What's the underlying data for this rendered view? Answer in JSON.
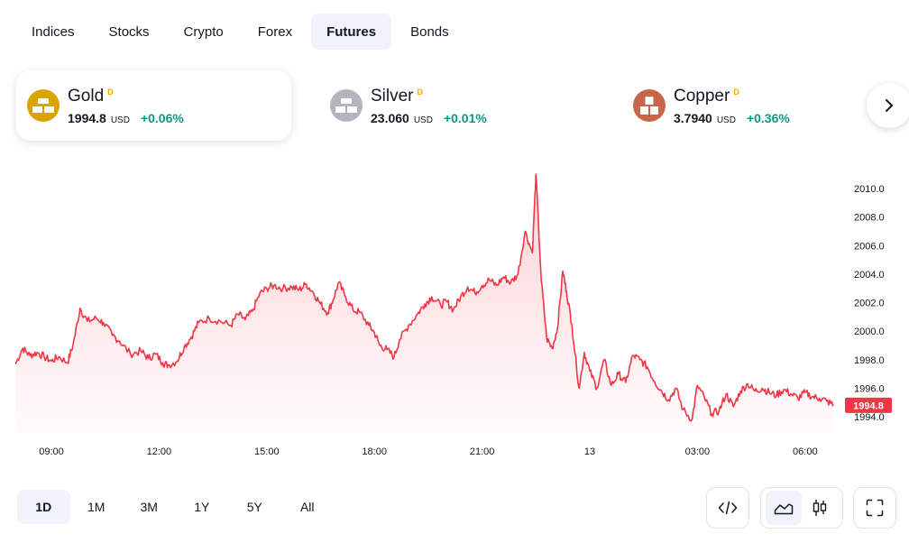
{
  "tabs": [
    {
      "label": "Indices",
      "active": false
    },
    {
      "label": "Stocks",
      "active": false
    },
    {
      "label": "Crypto",
      "active": false
    },
    {
      "label": "Forex",
      "active": false
    },
    {
      "label": "Futures",
      "active": true
    },
    {
      "label": "Bonds",
      "active": false
    }
  ],
  "cards": [
    {
      "name": "Gold",
      "mark": "D",
      "price": "1994.8",
      "unit": "USD",
      "change": "+0.06%",
      "logo_color": "#d9a400",
      "active": true
    },
    {
      "name": "Silver",
      "mark": "D",
      "price": "23.060",
      "unit": "USD",
      "change": "+0.01%",
      "logo_color": "#b2b5be",
      "active": false
    },
    {
      "name": "Copper",
      "mark": "D",
      "price": "3.7940",
      "unit": "USD",
      "change": "+0.36%",
      "logo_color": "#c8664a",
      "active": false
    }
  ],
  "ranges": [
    {
      "label": "1D",
      "active": true
    },
    {
      "label": "1M",
      "active": false
    },
    {
      "label": "3M",
      "active": false
    },
    {
      "label": "1Y",
      "active": false
    },
    {
      "label": "5Y",
      "active": false
    },
    {
      "label": "All",
      "active": false
    }
  ],
  "colors": {
    "line": "#f23645",
    "up": "#089981",
    "accent_bg": "#f0f3fa"
  },
  "chart_data": {
    "type": "area",
    "x_tick_labels": [
      "09:00",
      "12:00",
      "15:00",
      "18:00",
      "21:00",
      "13",
      "03:00",
      "06:00"
    ],
    "y_tick_labels": [
      "1994.0",
      "1996.0",
      "1998.0",
      "2000.0",
      "2002.0",
      "2004.0",
      "2006.0",
      "2008.0",
      "2010.0"
    ],
    "ylim": [
      1994.0,
      2010.0
    ],
    "last_price_label": "1994.8",
    "series": [
      {
        "points": [
          [
            8.0,
            1997.7
          ],
          [
            8.2,
            1998.8
          ],
          [
            8.4,
            1998.3
          ],
          [
            8.6,
            1998.5
          ],
          [
            8.8,
            1998.2
          ],
          [
            9.0,
            1997.9
          ],
          [
            9.2,
            1998.2
          ],
          [
            9.45,
            1997.8
          ],
          [
            9.6,
            1999.0
          ],
          [
            9.8,
            2001.6
          ],
          [
            10.0,
            2000.7
          ],
          [
            10.25,
            2000.9
          ],
          [
            10.45,
            2000.6
          ],
          [
            10.7,
            1999.7
          ],
          [
            10.9,
            1999.3
          ],
          [
            11.2,
            1998.4
          ],
          [
            11.5,
            1998.6
          ],
          [
            11.7,
            1998.1
          ],
          [
            11.9,
            1998.4
          ],
          [
            12.1,
            1997.8
          ],
          [
            12.25,
            1997.6
          ],
          [
            12.5,
            1997.9
          ],
          [
            12.7,
            1998.9
          ],
          [
            12.9,
            1999.6
          ],
          [
            13.1,
            2000.6
          ],
          [
            13.4,
            2000.9
          ],
          [
            13.7,
            2000.7
          ],
          [
            14.0,
            2000.4
          ],
          [
            14.2,
            2001.2
          ],
          [
            14.4,
            2000.8
          ],
          [
            14.6,
            2001.4
          ],
          [
            14.8,
            2002.6
          ],
          [
            15.0,
            2003.0
          ],
          [
            15.2,
            2003.2
          ],
          [
            15.45,
            2003.0
          ],
          [
            15.7,
            2003.1
          ],
          [
            15.9,
            2002.9
          ],
          [
            16.1,
            2003.3
          ],
          [
            16.3,
            2002.7
          ],
          [
            16.5,
            2001.9
          ],
          [
            16.7,
            2001.3
          ],
          [
            16.85,
            2002.2
          ],
          [
            17.0,
            2003.4
          ],
          [
            17.2,
            2002.4
          ],
          [
            17.4,
            2001.5
          ],
          [
            17.6,
            2001.3
          ],
          [
            17.85,
            2000.4
          ],
          [
            18.0,
            1999.9
          ],
          [
            18.15,
            1999.0
          ],
          [
            18.35,
            1998.7
          ],
          [
            18.55,
            1998.2
          ],
          [
            18.7,
            1999.4
          ],
          [
            18.95,
            2000.4
          ],
          [
            19.2,
            2001.2
          ],
          [
            19.4,
            2001.9
          ],
          [
            19.6,
            2002.4
          ],
          [
            19.85,
            2001.8
          ],
          [
            20.0,
            2002.1
          ],
          [
            20.2,
            2001.5
          ],
          [
            20.4,
            2002.4
          ],
          [
            20.6,
            2003.1
          ],
          [
            20.8,
            2002.7
          ],
          [
            21.0,
            2003.2
          ],
          [
            21.2,
            2003.6
          ],
          [
            21.4,
            2003.2
          ],
          [
            21.6,
            2003.8
          ],
          [
            21.8,
            2003.4
          ],
          [
            22.0,
            2004.0
          ],
          [
            22.2,
            2007.0
          ],
          [
            22.4,
            2005.5
          ],
          [
            22.5,
            2011.0
          ],
          [
            22.65,
            2003.5
          ],
          [
            22.8,
            1999.5
          ],
          [
            22.95,
            1998.8
          ],
          [
            23.1,
            2000.2
          ],
          [
            23.25,
            2004.2
          ],
          [
            23.35,
            2002.8
          ],
          [
            23.5,
            2000.5
          ],
          [
            23.7,
            1996.0
          ],
          [
            23.85,
            1998.5
          ],
          [
            24.0,
            1997.2
          ],
          [
            24.2,
            1996.0
          ],
          [
            24.4,
            1998.0
          ],
          [
            24.6,
            1996.2
          ],
          [
            24.8,
            1997.0
          ],
          [
            25.0,
            1996.4
          ],
          [
            25.2,
            1998.3
          ],
          [
            25.4,
            1998.0
          ],
          [
            25.6,
            1997.5
          ],
          [
            25.8,
            1996.5
          ],
          [
            26.0,
            1995.8
          ],
          [
            26.2,
            1995.2
          ],
          [
            26.4,
            1996.0
          ],
          [
            26.6,
            1994.5
          ],
          [
            26.85,
            1993.8
          ],
          [
            27.0,
            1996.2
          ],
          [
            27.2,
            1995.3
          ],
          [
            27.4,
            1994.2
          ],
          [
            27.6,
            1994.4
          ],
          [
            27.8,
            1995.6
          ],
          [
            28.0,
            1994.7
          ],
          [
            28.2,
            1995.8
          ],
          [
            28.4,
            1996.3
          ],
          [
            28.6,
            1995.8
          ],
          [
            28.8,
            1996.0
          ],
          [
            29.0,
            1995.7
          ],
          [
            29.2,
            1995.5
          ],
          [
            29.4,
            1995.9
          ],
          [
            29.6,
            1995.6
          ],
          [
            29.8,
            1995.3
          ],
          [
            30.0,
            1995.7
          ],
          [
            30.2,
            1995.4
          ],
          [
            30.4,
            1995.3
          ],
          [
            30.6,
            1995.1
          ],
          [
            30.8,
            1994.8
          ]
        ]
      }
    ]
  }
}
